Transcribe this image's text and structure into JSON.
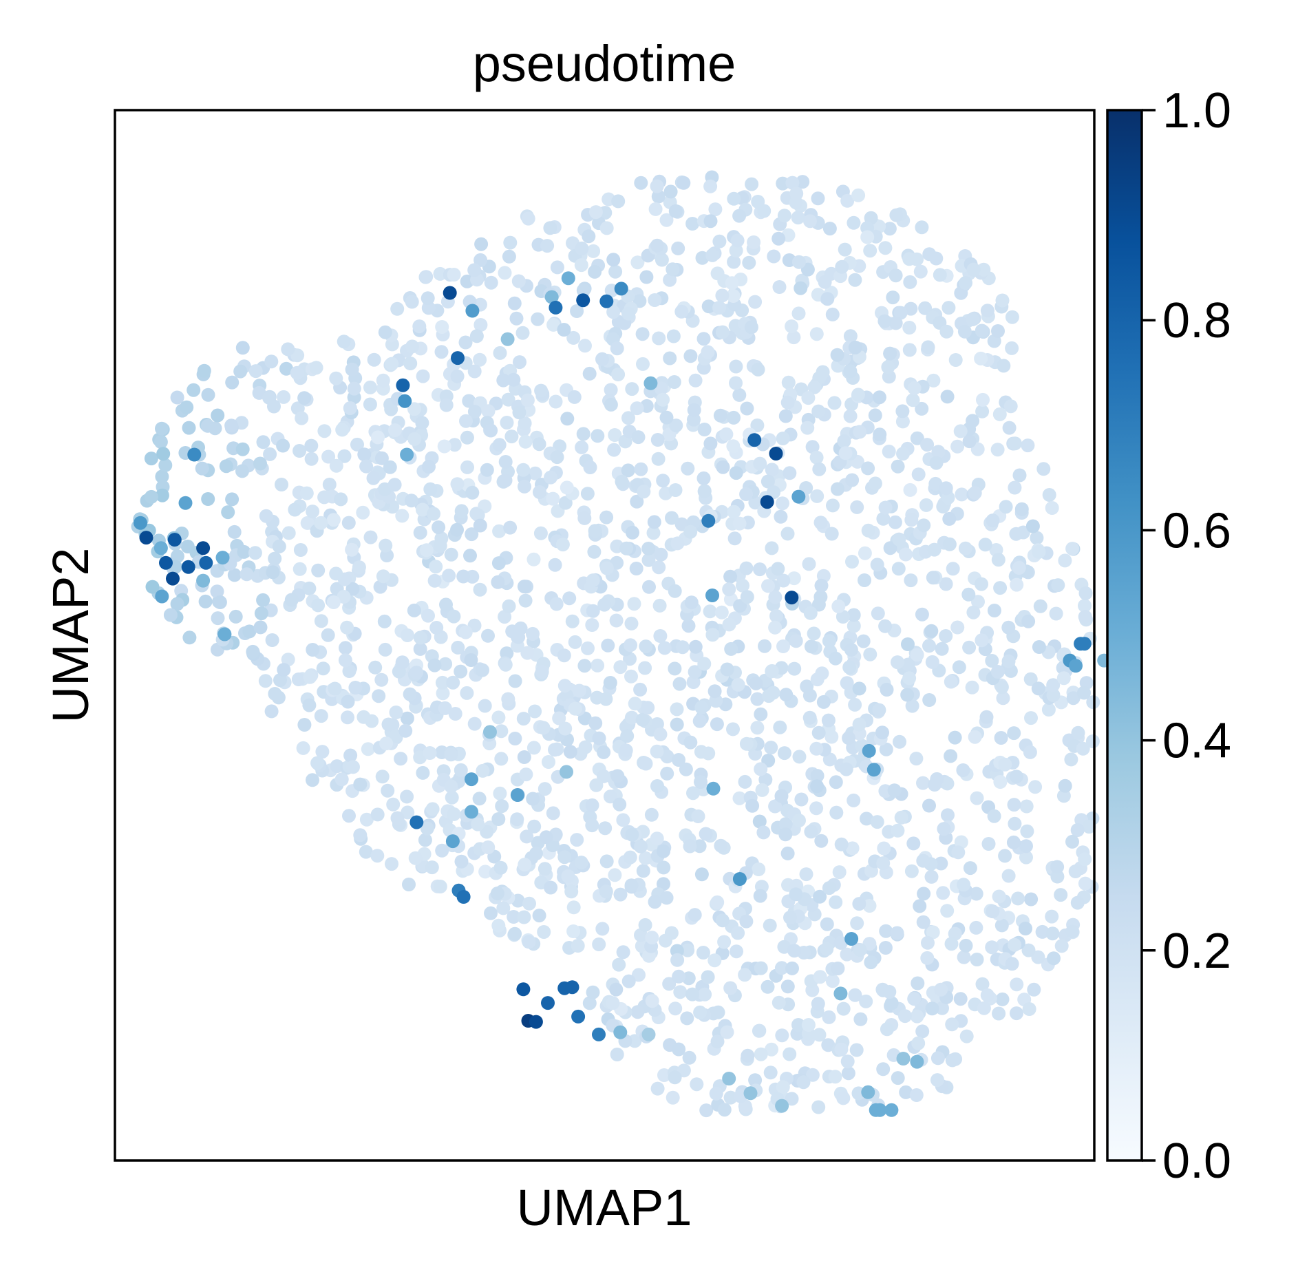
{
  "chart_data": {
    "type": "scatter",
    "title": "pseudotime",
    "xlabel": "UMAP1",
    "ylabel": "UMAP2",
    "xlim": [
      0,
      100
    ],
    "ylim": [
      0,
      100
    ],
    "grid": false,
    "colorbar": {
      "label": "",
      "range": [
        0.0,
        1.0
      ],
      "ticks": [
        "0.0",
        "0.2",
        "0.4",
        "0.6",
        "0.8",
        "1.0"
      ],
      "colormap": "Blues",
      "colors": [
        "#f7fbff",
        "#deebf7",
        "#c6dbef",
        "#9ecae1",
        "#6baed6",
        "#4292c6",
        "#2171b5",
        "#08519c",
        "#08306b"
      ]
    },
    "colored_points": [
      [
        51.7,
        83.0,
        0.65
      ],
      [
        50.2,
        81.8,
        0.75
      ],
      [
        46.3,
        84.0,
        0.5
      ],
      [
        44.6,
        82.2,
        0.45
      ],
      [
        36.5,
        80.9,
        0.58
      ],
      [
        34.2,
        82.6,
        0.9
      ],
      [
        35.0,
        76.4,
        0.8
      ],
      [
        29.4,
        73.8,
        0.8
      ],
      [
        29.6,
        72.3,
        0.62
      ],
      [
        47.8,
        81.9,
        0.85
      ],
      [
        45.0,
        81.2,
        0.75
      ],
      [
        40.1,
        78.2,
        0.4
      ],
      [
        29.8,
        67.2,
        0.5
      ],
      [
        65.3,
        68.6,
        0.8
      ],
      [
        67.5,
        67.3,
        0.9
      ],
      [
        66.6,
        62.7,
        0.9
      ],
      [
        69.8,
        63.2,
        0.55
      ],
      [
        60.6,
        60.9,
        0.7
      ],
      [
        69.1,
        53.6,
        0.9
      ],
      [
        61.0,
        53.8,
        0.55
      ],
      [
        54.7,
        74.0,
        0.45
      ],
      [
        98.6,
        49.2,
        0.7
      ],
      [
        97.5,
        47.6,
        0.6
      ],
      [
        99.0,
        49.2,
        0.7
      ],
      [
        77.0,
        39.0,
        0.55
      ],
      [
        8.1,
        67.2,
        0.65
      ],
      [
        7.2,
        62.6,
        0.55
      ],
      [
        6.1,
        59.1,
        0.85
      ],
      [
        9.0,
        58.3,
        0.9
      ],
      [
        7.5,
        56.5,
        0.85
      ],
      [
        5.9,
        55.4,
        0.9
      ],
      [
        4.7,
        58.3,
        0.5
      ],
      [
        5.2,
        56.9,
        0.85
      ],
      [
        4.8,
        53.7,
        0.55
      ],
      [
        2.6,
        60.7,
        0.6
      ],
      [
        3.2,
        59.3,
        0.9
      ],
      [
        9.3,
        56.9,
        0.8
      ],
      [
        11.0,
        57.4,
        0.5
      ],
      [
        11.2,
        50.1,
        0.5
      ],
      [
        9.0,
        55.2,
        0.45
      ],
      [
        36.4,
        36.3,
        0.55
      ],
      [
        38.3,
        40.8,
        0.4
      ],
      [
        36.4,
        33.2,
        0.5
      ],
      [
        30.8,
        32.2,
        0.75
      ],
      [
        34.5,
        30.4,
        0.55
      ],
      [
        35.1,
        25.7,
        0.7
      ],
      [
        35.6,
        25.1,
        0.75
      ],
      [
        46.1,
        37.0,
        0.4
      ],
      [
        41.1,
        34.8,
        0.55
      ],
      [
        61.1,
        35.4,
        0.5
      ],
      [
        77.5,
        37.2,
        0.55
      ],
      [
        63.8,
        26.8,
        0.6
      ],
      [
        41.7,
        16.3,
        0.85
      ],
      [
        44.2,
        15.0,
        0.8
      ],
      [
        45.9,
        16.4,
        0.8
      ],
      [
        46.7,
        16.5,
        0.8
      ],
      [
        42.2,
        13.3,
        0.95
      ],
      [
        43.0,
        13.2,
        0.9
      ],
      [
        47.3,
        13.7,
        0.75
      ],
      [
        49.4,
        12.0,
        0.7
      ],
      [
        51.6,
        12.2,
        0.45
      ],
      [
        54.5,
        12.0,
        0.35
      ],
      [
        75.2,
        21.1,
        0.55
      ],
      [
        74.1,
        15.9,
        0.45
      ],
      [
        81.9,
        9.4,
        0.45
      ],
      [
        80.5,
        9.7,
        0.4
      ],
      [
        76.9,
        6.5,
        0.45
      ],
      [
        77.7,
        4.8,
        0.5
      ],
      [
        78.1,
        4.8,
        0.5
      ],
      [
        79.3,
        4.8,
        0.5
      ],
      [
        68.1,
        5.2,
        0.4
      ],
      [
        64.9,
        6.4,
        0.4
      ],
      [
        62.7,
        7.8,
        0.4
      ],
      [
        98.1,
        47.1,
        0.55
      ],
      [
        101.0,
        47.6,
        0.45
      ]
    ]
  }
}
